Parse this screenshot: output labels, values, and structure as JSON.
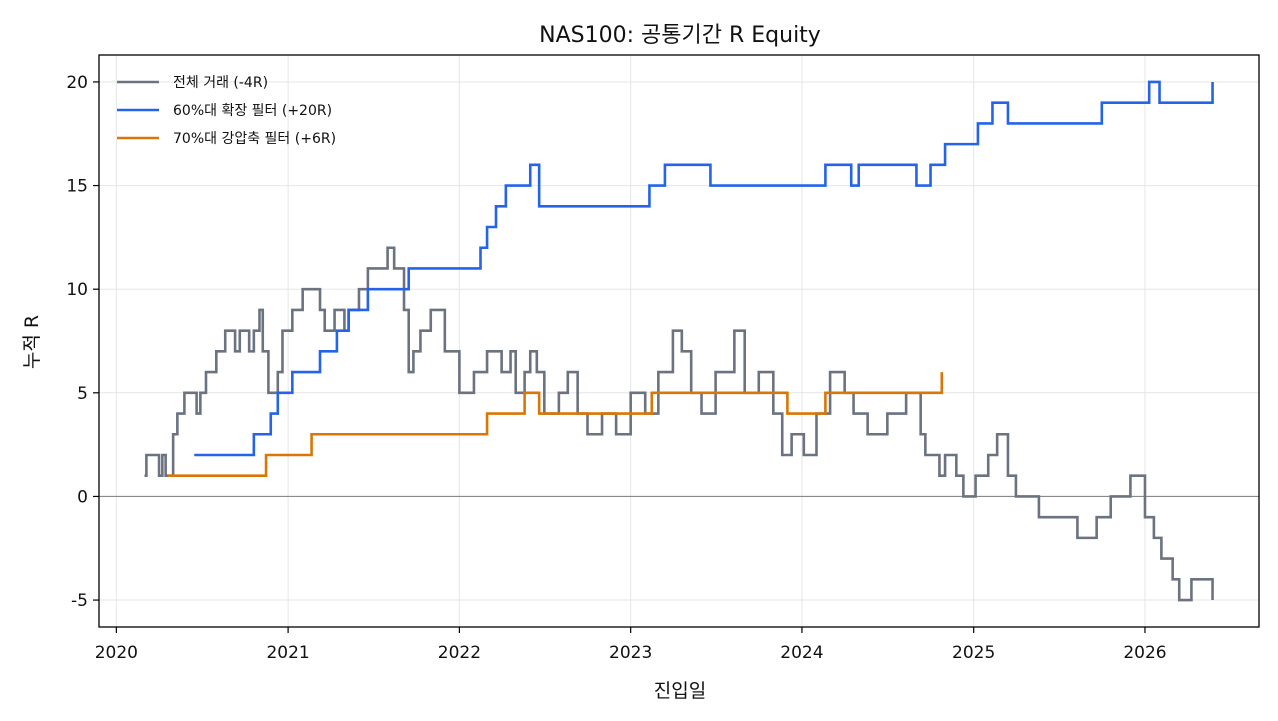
{
  "chart_data": {
    "type": "line",
    "title": "NAS100: 공통기간 R Equity",
    "xlabel": "진입일",
    "ylabel": "누적 R",
    "x_ticks": [
      "2020",
      "2021",
      "2022",
      "2023",
      "2024",
      "2025",
      "2026"
    ],
    "y_ticks": [
      "-5",
      "0",
      "5",
      "10",
      "15",
      "20"
    ],
    "xlim": [
      "2019-11-25",
      "2026-09-01"
    ],
    "ylim": [
      -6.3,
      21.3
    ],
    "grid": true,
    "legend_position": "top-left",
    "zero_line": 0,
    "series": [
      {
        "name": "전체 거래 (-4R)",
        "color": "#6b7280",
        "points": [
          [
            "2020-03-01",
            1
          ],
          [
            "2020-03-05",
            2
          ],
          [
            "2020-04-01",
            1
          ],
          [
            "2020-04-08",
            2
          ],
          [
            "2020-04-15",
            1
          ],
          [
            "2020-04-22",
            1
          ],
          [
            "2020-05-01",
            3
          ],
          [
            "2020-05-10",
            4
          ],
          [
            "2020-05-25",
            5
          ],
          [
            "2020-06-20",
            4
          ],
          [
            "2020-06-28",
            5
          ],
          [
            "2020-07-10",
            6
          ],
          [
            "2020-08-01",
            7
          ],
          [
            "2020-08-20",
            8
          ],
          [
            "2020-09-10",
            7
          ],
          [
            "2020-09-20",
            8
          ],
          [
            "2020-10-10",
            7
          ],
          [
            "2020-10-20",
            8
          ],
          [
            "2020-11-01",
            9
          ],
          [
            "2020-11-08",
            7
          ],
          [
            "2020-11-20",
            5
          ],
          [
            "2020-12-10",
            6
          ],
          [
            "2020-12-20",
            8
          ],
          [
            "2021-01-10",
            9
          ],
          [
            "2021-02-01",
            10
          ],
          [
            "2021-03-10",
            9
          ],
          [
            "2021-03-20",
            8
          ],
          [
            "2021-04-10",
            9
          ],
          [
            "2021-05-01",
            8
          ],
          [
            "2021-05-10",
            9
          ],
          [
            "2021-06-01",
            10
          ],
          [
            "2021-06-20",
            11
          ],
          [
            "2021-07-15",
            11
          ],
          [
            "2021-08-01",
            12
          ],
          [
            "2021-08-15",
            11
          ],
          [
            "2021-09-05",
            9
          ],
          [
            "2021-09-15",
            6
          ],
          [
            "2021-09-25",
            7
          ],
          [
            "2021-10-10",
            8
          ],
          [
            "2021-11-01",
            9
          ],
          [
            "2021-12-01",
            7
          ],
          [
            "2022-01-01",
            5
          ],
          [
            "2022-02-01",
            6
          ],
          [
            "2022-03-01",
            7
          ],
          [
            "2022-04-01",
            6
          ],
          [
            "2022-04-20",
            7
          ],
          [
            "2022-05-01",
            5
          ],
          [
            "2022-05-20",
            6
          ],
          [
            "2022-06-01",
            7
          ],
          [
            "2022-06-15",
            6
          ],
          [
            "2022-07-01",
            4
          ],
          [
            "2022-08-01",
            5
          ],
          [
            "2022-08-20",
            6
          ],
          [
            "2022-09-10",
            4
          ],
          [
            "2022-10-01",
            3
          ],
          [
            "2022-11-01",
            4
          ],
          [
            "2022-12-01",
            3
          ],
          [
            "2023-01-01",
            5
          ],
          [
            "2023-02-01",
            4
          ],
          [
            "2023-03-01",
            6
          ],
          [
            "2023-04-01",
            8
          ],
          [
            "2023-04-20",
            7
          ],
          [
            "2023-05-10",
            5
          ],
          [
            "2023-06-01",
            4
          ],
          [
            "2023-07-01",
            6
          ],
          [
            "2023-08-10",
            8
          ],
          [
            "2023-09-01",
            5
          ],
          [
            "2023-10-01",
            6
          ],
          [
            "2023-11-01",
            4
          ],
          [
            "2023-11-20",
            2
          ],
          [
            "2023-12-10",
            3
          ],
          [
            "2024-01-05",
            2
          ],
          [
            "2024-02-01",
            4
          ],
          [
            "2024-03-01",
            6
          ],
          [
            "2024-04-01",
            5
          ],
          [
            "2024-04-20",
            4
          ],
          [
            "2024-05-20",
            3
          ],
          [
            "2024-07-01",
            4
          ],
          [
            "2024-08-10",
            5
          ],
          [
            "2024-09-10",
            3
          ],
          [
            "2024-09-20",
            2
          ],
          [
            "2024-10-20",
            1
          ],
          [
            "2024-11-01",
            2
          ],
          [
            "2024-11-25",
            1
          ],
          [
            "2024-12-10",
            0
          ],
          [
            "2025-01-05",
            1
          ],
          [
            "2025-02-01",
            2
          ],
          [
            "2025-02-20",
            3
          ],
          [
            "2025-03-15",
            1
          ],
          [
            "2025-04-01",
            0
          ],
          [
            "2025-05-20",
            -1
          ],
          [
            "2025-08-10",
            -2
          ],
          [
            "2025-09-20",
            -1
          ],
          [
            "2025-10-20",
            0
          ],
          [
            "2025-12-01",
            1
          ],
          [
            "2026-01-01",
            -1
          ],
          [
            "2026-01-20",
            -2
          ],
          [
            "2026-02-05",
            -3
          ],
          [
            "2026-03-01",
            -4
          ],
          [
            "2026-03-15",
            -5
          ],
          [
            "2026-04-10",
            -4
          ],
          [
            "2026-05-25",
            -4
          ],
          [
            "2026-05-25",
            -5
          ]
        ]
      },
      {
        "name": "60%대 확장 필터 (+20R)",
        "color": "#2563eb",
        "points": [
          [
            "2020-06-15",
            2
          ],
          [
            "2020-10-20",
            3
          ],
          [
            "2020-11-25",
            4
          ],
          [
            "2020-12-10",
            5
          ],
          [
            "2021-01-10",
            6
          ],
          [
            "2021-02-10",
            6
          ],
          [
            "2021-03-10",
            7
          ],
          [
            "2021-04-15",
            8
          ],
          [
            "2021-05-10",
            9
          ],
          [
            "2021-06-20",
            10
          ],
          [
            "2021-08-15",
            10
          ],
          [
            "2021-09-15",
            11
          ],
          [
            "2022-02-15",
            12
          ],
          [
            "2022-03-01",
            13
          ],
          [
            "2022-03-20",
            14
          ],
          [
            "2022-04-10",
            15
          ],
          [
            "2022-06-01",
            16
          ],
          [
            "2022-06-20",
            14
          ],
          [
            "2023-02-10",
            15
          ],
          [
            "2023-03-15",
            16
          ],
          [
            "2023-06-20",
            15
          ],
          [
            "2023-12-01",
            15
          ],
          [
            "2024-01-10",
            15
          ],
          [
            "2024-02-20",
            16
          ],
          [
            "2024-04-15",
            15
          ],
          [
            "2024-05-01",
            16
          ],
          [
            "2024-09-01",
            15
          ],
          [
            "2024-10-01",
            16
          ],
          [
            "2024-11-01",
            17
          ],
          [
            "2025-01-10",
            18
          ],
          [
            "2025-02-10",
            19
          ],
          [
            "2025-03-15",
            18
          ],
          [
            "2025-10-01",
            19
          ],
          [
            "2026-01-10",
            20
          ],
          [
            "2026-02-01",
            19
          ],
          [
            "2026-05-25",
            19
          ],
          [
            "2026-05-25",
            20
          ]
        ]
      },
      {
        "name": "70%대 강압축 필터 (+6R)",
        "color": "#d97706",
        "points": [
          [
            "2020-04-20",
            1
          ],
          [
            "2020-11-15",
            2
          ],
          [
            "2021-02-20",
            3
          ],
          [
            "2022-03-01",
            4
          ],
          [
            "2022-05-20",
            5
          ],
          [
            "2022-06-20",
            4
          ],
          [
            "2023-02-15",
            5
          ],
          [
            "2023-12-01",
            4
          ],
          [
            "2024-02-20",
            5
          ],
          [
            "2024-10-25",
            5
          ],
          [
            "2024-10-25",
            6
          ]
        ]
      }
    ]
  }
}
